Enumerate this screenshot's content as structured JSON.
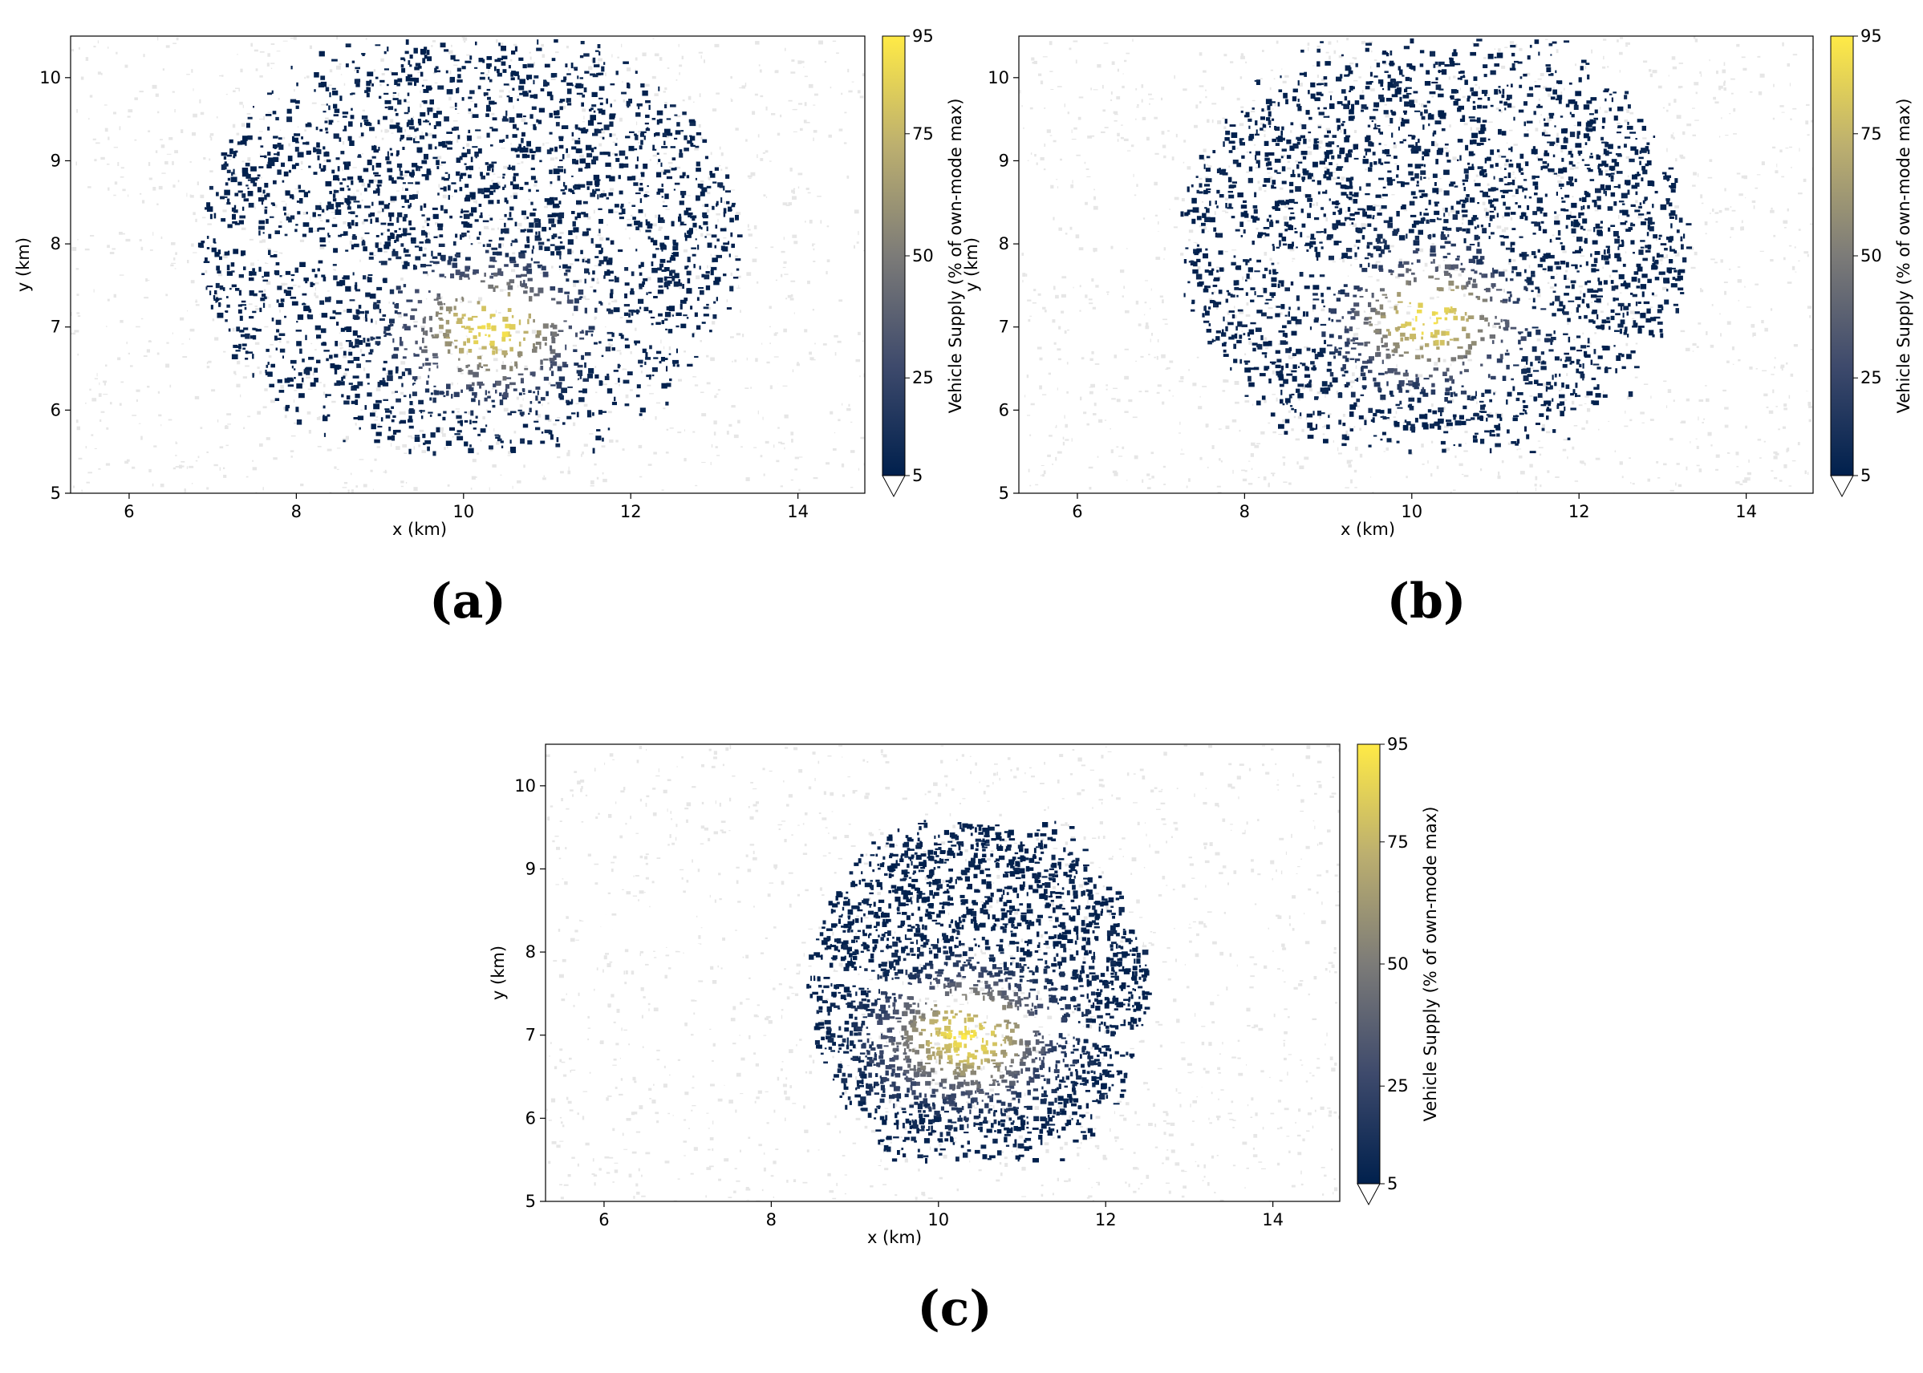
{
  "chart_data": [
    {
      "type": "heatmap",
      "panel_label": "(a)",
      "xlabel": "x (km)",
      "ylabel": "y (km)",
      "xlim": [
        5.3,
        14.8
      ],
      "ylim": [
        5.0,
        10.5
      ],
      "xticks": [
        6,
        8,
        10,
        12,
        14
      ],
      "yticks": [
        5,
        6,
        7,
        8,
        9,
        10
      ],
      "colorbar": {
        "label": "Vehicle Supply (% of own-mode max)",
        "ticks": [
          5,
          25,
          50,
          75,
          95
        ],
        "range": [
          5,
          95
        ],
        "extend": "min"
      },
      "colormap": [
        "#00204d",
        "#3e4a6c",
        "#7c7b78",
        "#bcaf6f",
        "#ffea46"
      ],
      "hotspot": [
        10.3,
        7.0
      ],
      "footprint_extent": {
        "x": [
          6.8,
          13.3
        ],
        "y": [
          5.5,
          10.5
        ]
      }
    },
    {
      "type": "heatmap",
      "panel_label": "(b)",
      "xlabel": "x (km)",
      "ylabel": "y (km)",
      "xlim": [
        5.3,
        14.8
      ],
      "ylim": [
        5.0,
        10.5
      ],
      "xticks": [
        6,
        8,
        10,
        12,
        14
      ],
      "yticks": [
        5,
        6,
        7,
        8,
        9,
        10
      ],
      "colorbar": {
        "label": "Vehicle Supply (% of own-mode max)",
        "ticks": [
          5,
          25,
          50,
          75,
          95
        ],
        "range": [
          5,
          95
        ],
        "extend": "min"
      },
      "colormap": [
        "#00204d",
        "#3e4a6c",
        "#7c7b78",
        "#bcaf6f",
        "#ffea46"
      ],
      "hotspot": [
        10.2,
        7.1
      ],
      "footprint_extent": {
        "x": [
          7.2,
          13.3
        ],
        "y": [
          5.5,
          10.5
        ]
      }
    },
    {
      "type": "heatmap",
      "panel_label": "(c)",
      "xlabel": "x (km)",
      "ylabel": "y (km)",
      "xlim": [
        5.3,
        14.8
      ],
      "ylim": [
        5.0,
        10.5
      ],
      "xticks": [
        6,
        8,
        10,
        12,
        14
      ],
      "yticks": [
        5,
        6,
        7,
        8,
        9,
        10
      ],
      "colorbar": {
        "label": "Vehicle Supply (% of own-mode max)",
        "ticks": [
          5,
          25,
          50,
          75,
          95
        ],
        "range": [
          5,
          95
        ],
        "extend": "min"
      },
      "colormap": [
        "#00204d",
        "#3e4a6c",
        "#7c7b78",
        "#bcaf6f",
        "#ffea46"
      ],
      "hotspot": [
        10.3,
        7.0
      ],
      "footprint_extent": {
        "x": [
          8.4,
          12.5
        ],
        "y": [
          5.5,
          9.6
        ]
      }
    }
  ]
}
